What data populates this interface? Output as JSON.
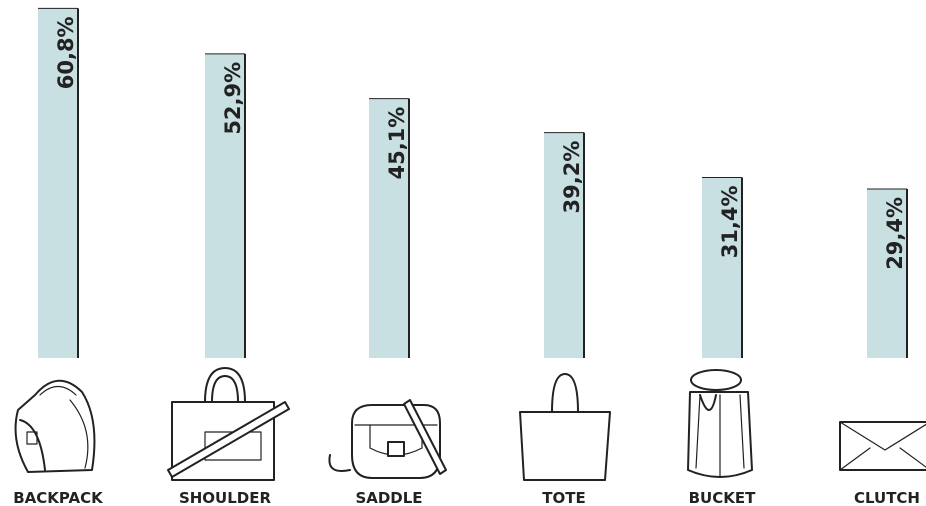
{
  "chart_data": {
    "type": "bar",
    "categories": [
      "BACKPACK",
      "SHOULDER",
      "SADDLE",
      "TOTE",
      "BUCKET",
      "CLUTCH"
    ],
    "values": [
      60.8,
      52.9,
      45.1,
      39.2,
      31.4,
      29.4
    ],
    "value_labels": [
      "60,8%",
      "52,9%",
      "45,1%",
      "39,2%",
      "31,4%",
      "29,4%"
    ],
    "color": "#c8e0e2"
  }
}
